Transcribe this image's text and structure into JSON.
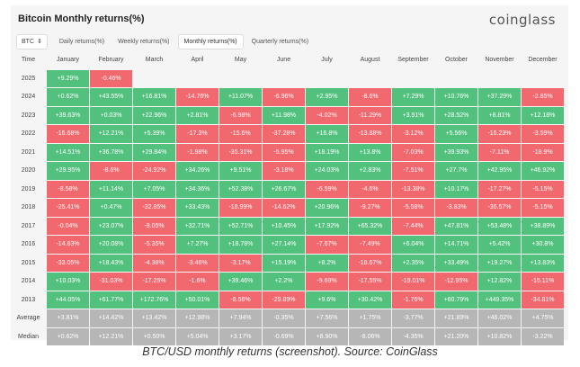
{
  "title": "Bitcoin Monthly returns(%)",
  "logo": "coinglass",
  "coin_select": "BTC",
  "tabs": [
    "Daily returns(%)",
    "Weekly returns(%)",
    "Monthly returns(%)",
    "Quarterly returns(%)"
  ],
  "active_tab": 2,
  "time_label": "Time",
  "months": [
    "January",
    "February",
    "March",
    "April",
    "May",
    "June",
    "July",
    "August",
    "September",
    "October",
    "November",
    "December"
  ],
  "rows": [
    {
      "label": "2025",
      "values": [
        "+9.29%",
        "-0.46%",
        "",
        "",
        "",
        "",
        "",
        "",
        "",
        "",
        "",
        ""
      ]
    },
    {
      "label": "2024",
      "values": [
        "+0.62%",
        "+43.55%",
        "+16.81%",
        "-14.76%",
        "+11.07%",
        "-6.96%",
        "+2.95%",
        "-8.6%",
        "+7.29%",
        "+10.76%",
        "+37.29%",
        "-2.85%"
      ]
    },
    {
      "label": "2023",
      "values": [
        "+39.63%",
        "+0.03%",
        "+22.96%",
        "+2.81%",
        "-6.98%",
        "+11.98%",
        "-4.02%",
        "-11.29%",
        "+3.91%",
        "+28.52%",
        "+8.81%",
        "+12.18%"
      ]
    },
    {
      "label": "2022",
      "values": [
        "-16.68%",
        "+12.21%",
        "+5.39%",
        "-17.3%",
        "-15.6%",
        "-37.28%",
        "+16.8%",
        "-13.88%",
        "-3.12%",
        "+5.56%",
        "-16.23%",
        "-3.59%"
      ]
    },
    {
      "label": "2021",
      "values": [
        "+14.51%",
        "+36.78%",
        "+29.84%",
        "-1.98%",
        "-35.31%",
        "-5.95%",
        "+18.19%",
        "+13.8%",
        "-7.03%",
        "+39.93%",
        "-7.11%",
        "-18.9%"
      ]
    },
    {
      "label": "2020",
      "values": [
        "+29.95%",
        "-8.6%",
        "-24.92%",
        "+34.26%",
        "+9.51%",
        "-3.18%",
        "+24.03%",
        "+2.83%",
        "-7.51%",
        "+27.7%",
        "+42.95%",
        "+46.92%"
      ]
    },
    {
      "label": "2019",
      "values": [
        "-8.58%",
        "+11.14%",
        "+7.05%",
        "+34.36%",
        "+52.38%",
        "+26.67%",
        "-6.59%",
        "-4.6%",
        "-13.38%",
        "+10.17%",
        "-17.27%",
        "-5.15%"
      ]
    },
    {
      "label": "2018",
      "values": [
        "-25.41%",
        "+0.47%",
        "-32.85%",
        "+33.43%",
        "-18.99%",
        "-14.62%",
        "+20.96%",
        "-9.27%",
        "-5.58%",
        "-3.83%",
        "-36.57%",
        "-5.15%"
      ]
    },
    {
      "label": "2017",
      "values": [
        "-0.04%",
        "+23.07%",
        "-9.05%",
        "+32.71%",
        "+52.71%",
        "+10.45%",
        "+17.92%",
        "+65.32%",
        "-7.44%",
        "+47.81%",
        "+53.48%",
        "+38.89%"
      ]
    },
    {
      "label": "2016",
      "values": [
        "-14.83%",
        "+20.08%",
        "-5.35%",
        "+7.27%",
        "+18.78%",
        "+27.14%",
        "-7.67%",
        "-7.49%",
        "+6.04%",
        "+14.71%",
        "+5.42%",
        "+30.8%"
      ]
    },
    {
      "label": "2015",
      "values": [
        "-33.05%",
        "+18.43%",
        "-4.38%",
        "-3.46%",
        "-3.17%",
        "+15.19%",
        "+8.2%",
        "-18.67%",
        "+2.35%",
        "+33.49%",
        "+19.27%",
        "+13.83%"
      ]
    },
    {
      "label": "2014",
      "values": [
        "+10.03%",
        "-31.03%",
        "-17.25%",
        "-1.6%",
        "+39.46%",
        "+2.2%",
        "-9.69%",
        "-17.55%",
        "-19.01%",
        "-12.95%",
        "+12.82%",
        "-15.11%"
      ]
    },
    {
      "label": "2013",
      "values": [
        "+44.05%",
        "+61.77%",
        "+172.76%",
        "+50.01%",
        "-8.56%",
        "-29.89%",
        "+9.6%",
        "+30.42%",
        "-1.76%",
        "+60.79%",
        "+449.35%",
        "-34.81%"
      ]
    }
  ],
  "summary_rows": [
    {
      "label": "Average",
      "values": [
        "+3.81%",
        "+14.42%",
        "+13.42%",
        "+12.98%",
        "+7.94%",
        "-0.35%",
        "+7.56%",
        "+1.75%",
        "-3.77%",
        "+21.89%",
        "+46.02%",
        "+4.75%"
      ]
    },
    {
      "label": "Median",
      "values": [
        "+0.62%",
        "+12.21%",
        "+0.50%",
        "+5.04%",
        "+3.17%",
        "-0.69%",
        "+8.90%",
        "-8.06%",
        "-4.35%",
        "+21.20%",
        "+10.82%",
        "-3.22%"
      ]
    }
  ],
  "caption": "BTC/USD monthly returns (screenshot). Source: CoinGlass",
  "colors": {
    "positive": "#52c17d",
    "negative": "#f1686f",
    "summary": "#b6b6b6"
  }
}
